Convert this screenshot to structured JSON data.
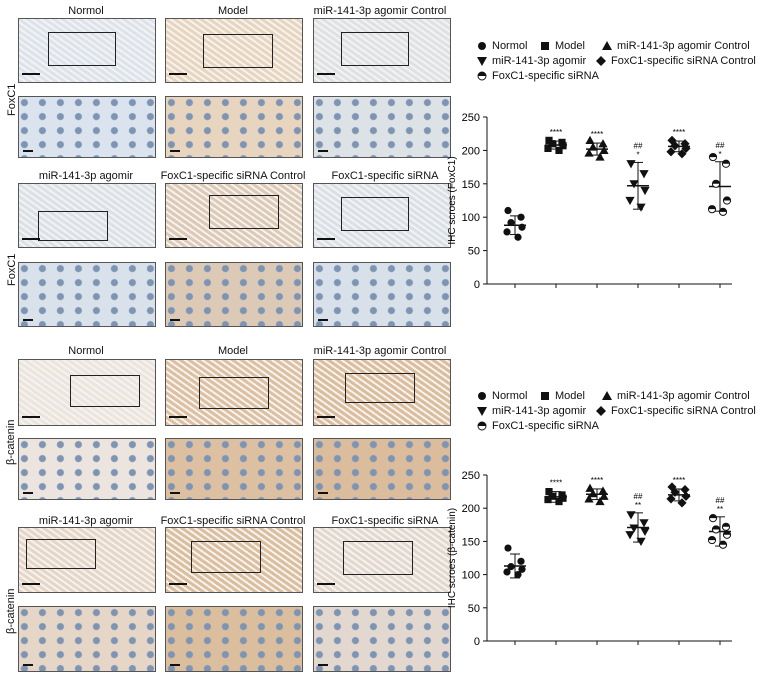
{
  "sections": [
    {
      "stain": "FoxC1",
      "row1_labels": [
        "Normol",
        "Model",
        "miR-141-3p agomir Control"
      ],
      "row2_labels": [
        "miR-141-3p agomir",
        "FoxC1-specific siRNA Control",
        "FoxC1-specific siRNA"
      ],
      "tones": [
        "#dbe4ee",
        "#e8d5c0",
        "#dde2e6",
        "#d9e2ea",
        "#dccab6",
        "#d8e0ea"
      ]
    },
    {
      "stain": "β-catenin",
      "row1_labels": [
        "Normol",
        "Model",
        "miR-141-3p agomir Control"
      ],
      "row2_labels": [
        "miR-141-3p agomir",
        "FoxC1-specific siRNA Control",
        "FoxC1-specific siRNA"
      ],
      "tones": [
        "#ece4de",
        "#ddc0a2",
        "#dbbc9c",
        "#e5d6c8",
        "#dbbe9e",
        "#e3d8cf"
      ]
    }
  ],
  "legend": {
    "items": [
      "Normol",
      "Model",
      "miR-141-3p agomir Control",
      "miR-141-3p agomir",
      "FoxC1-specific siRNA Control",
      "FoxC1-specific siRNA"
    ],
    "markers": [
      "circle",
      "square",
      "triangle-up",
      "triangle-down",
      "diamond",
      "half-circle"
    ]
  },
  "chart_data": [
    {
      "type": "scatter",
      "ylabel": "IHC scroes (FoxC1)",
      "ylim": [
        0,
        250
      ],
      "yticks": [
        0,
        50,
        100,
        150,
        200,
        250
      ],
      "groups": [
        "Normol",
        "Model",
        "miR-141-3p agomir Control",
        "miR-141-3p agomir",
        "FoxC1-specific siRNA Control",
        "FoxC1-specific siRNA"
      ],
      "points": [
        [
          110,
          100,
          92,
          85,
          78,
          70
        ],
        [
          215,
          212,
          210,
          207,
          203,
          200
        ],
        [
          215,
          210,
          205,
          200,
          196,
          190
        ],
        [
          180,
          165,
          150,
          140,
          125,
          115
        ],
        [
          215,
          210,
          207,
          203,
          198,
          195
        ],
        [
          190,
          180,
          150,
          125,
          112,
          108
        ]
      ],
      "means": [
        88,
        208,
        202,
        147,
        206,
        146
      ],
      "sd": [
        14,
        6,
        9,
        35,
        8,
        37
      ],
      "annotations": [
        [
          "",
          ""
        ],
        [
          "****",
          ""
        ],
        [
          "****",
          ""
        ],
        [
          "##",
          "*"
        ],
        [
          "****",
          ""
        ],
        [
          "##",
          "*"
        ]
      ]
    },
    {
      "type": "scatter",
      "ylabel": "IHC scroes (β-catenin)",
      "ylim": [
        0,
        250
      ],
      "yticks": [
        0,
        50,
        100,
        150,
        200,
        250
      ],
      "groups": [
        "Normol",
        "Model",
        "miR-141-3p agomir Control",
        "miR-141-3p agomir",
        "FoxC1-specific siRNA Control",
        "FoxC1-specific siRNA"
      ],
      "points": [
        [
          140,
          120,
          112,
          108,
          104,
          100
        ],
        [
          225,
          220,
          218,
          215,
          213,
          210
        ],
        [
          230,
          226,
          222,
          218,
          214,
          210
        ],
        [
          190,
          178,
          170,
          165,
          160,
          150
        ],
        [
          232,
          228,
          224,
          218,
          214,
          208
        ],
        [
          185,
          172,
          168,
          160,
          152,
          145
        ]
      ],
      "means": [
        113,
        217,
        221,
        171,
        220,
        165
      ],
      "sd": [
        18,
        8,
        8,
        22,
        9,
        22
      ],
      "annotations": [
        [
          "",
          ""
        ],
        [
          "****",
          ""
        ],
        [
          "****",
          ""
        ],
        [
          "##",
          "**"
        ],
        [
          "****",
          ""
        ],
        [
          "##",
          "**"
        ]
      ]
    }
  ]
}
